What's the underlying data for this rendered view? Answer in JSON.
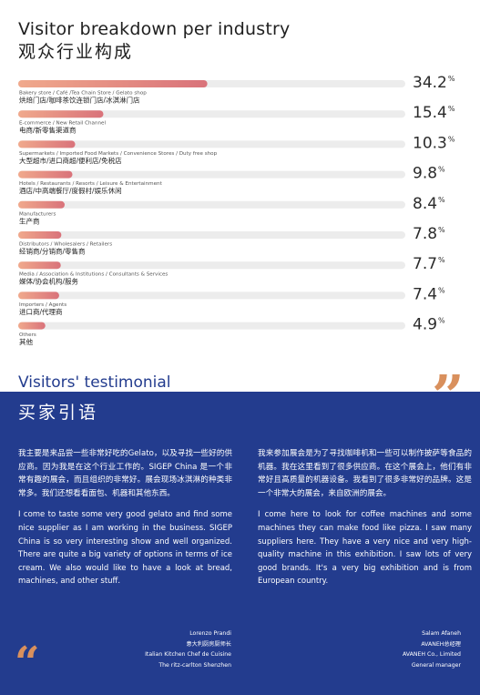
{
  "header": {
    "title_en": "Visitor breakdown per industry",
    "title_cn": "观众行业构成"
  },
  "chart_data": {
    "type": "bar",
    "orientation": "horizontal",
    "title": "Visitor breakdown per industry",
    "subtitle": "观众行业构成",
    "xlim": [
      0,
      100
    ],
    "unit": "%",
    "grid": false,
    "categories": [
      {
        "en": "Bakery store / Café /Tea Chain Store / Gelato shop",
        "cn": "烘焙门店/咖啡茶饮连锁门店/冰淇淋门店",
        "value": 34.2
      },
      {
        "en": "E-commerce / New Retail Channel",
        "cn": "电商/新零售渠道商",
        "value": 15.4
      },
      {
        "en": "Supermarkets / Imported Food Markets / Convenience Stores / Duty free shop",
        "cn": "大型超市/进口商超/便利店/免税店",
        "value": 10.3
      },
      {
        "en": "Hotels / Restaurants / Resorts / Leisure & Entertainment",
        "cn": "酒店/中高端餐厅/度假村/娱乐休闲",
        "value": 9.8
      },
      {
        "en": "Manufacturers",
        "cn": "生产商",
        "value": 8.4
      },
      {
        "en": "Distributors / Wholesalers / Retailers",
        "cn": "经销商/分销商/零售商",
        "value": 7.8
      },
      {
        "en": "Media / Association & Institutions / Consultants & Services",
        "cn": "媒体/协会机构/服务",
        "value": 7.7
      },
      {
        "en": "Importers / Agents",
        "cn": "进口商/代理商",
        "value": 7.4
      },
      {
        "en": "Others",
        "cn": "其他",
        "value": 4.9
      }
    ],
    "colors": {
      "bar_start": "#f0a98c",
      "bar_end": "#d9727a",
      "track": "#ececec"
    }
  },
  "testimonial": {
    "title_en": "Visitors' testimonial",
    "title_cn": "买家引语",
    "left": {
      "cn": "我主要是来品尝一些非常好吃的Gelato，以及寻找一些好的供应商。因为我是在这个行业工作的。SIGEP China 是一个非常有趣的展会，而且组织的非常好。展会现场冰淇淋的种类非常多。我们还想看看面包、机器和其他东西。",
      "en": "I come to taste some very good gelato and find some nice supplier as I am working in the business. SIGEP China is so very interesting show and well organized. There are quite a big variety of options in terms of ice cream. We also would like to have a look at bread, machines, and other stuff.",
      "name": "Lorenzo Prandi",
      "role_cn": "意大利厨房厨师长",
      "role_en": "Italian Kitchen Chef de Cuisine",
      "company": "The ritz-carlton Shenzhen"
    },
    "right": {
      "cn": "我来参加展会是为了寻找咖啡机和一些可以制作披萨等食品的机器。我在这里看到了很多供应商。在这个展会上，他们有非常好且高质量的机器设备。我看到了很多非常好的品牌。这是一个非常大的展会，来自欧洲的展会。",
      "en": "I come here to look for coffee machines and some machines they can make food like pizza. I saw many suppliers here. They have a very nice and very high-quality machine in this exhibition. I saw lots of very good brands. It's a very big exhibition and is from European country.",
      "name": "Salam Afaneh",
      "role_cn": "AVANEH总经理",
      "company": "AVANEH Co., Limited",
      "role_en": "General manager"
    },
    "colors": {
      "background": "#233c8e",
      "quote": "#d9905d"
    }
  }
}
